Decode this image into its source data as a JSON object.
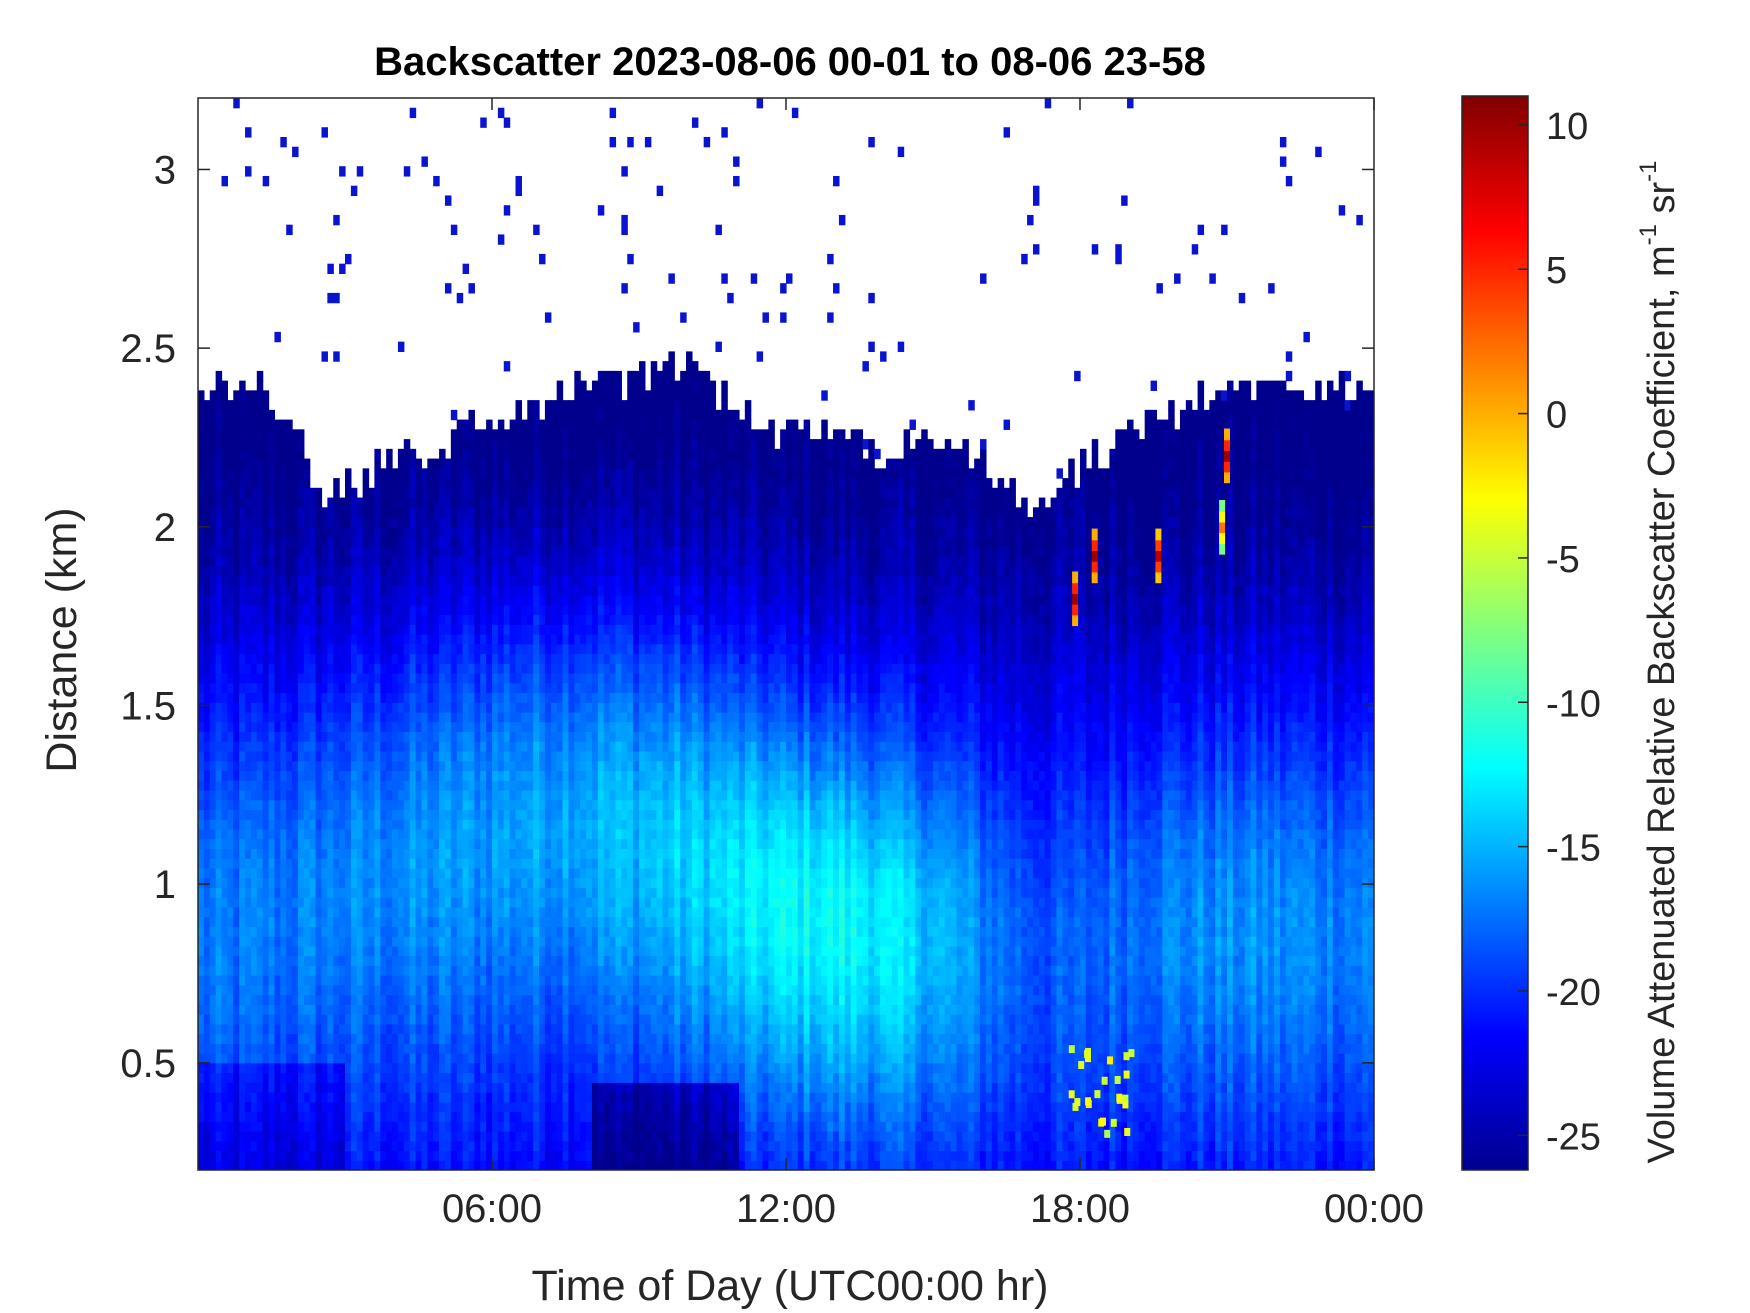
{
  "chart_data": {
    "type": "heatmap",
    "title": "Backscatter 2023-08-06 00-01 to 08-06 23-58",
    "xlabel": "Time of Day (UTC00:00 hr)",
    "ylabel": "Distance (km)",
    "colorbar_label": {
      "main": "Volume Attenuated Relative Backscatter Coefficient, m",
      "exp1": "-1",
      "mid": " sr",
      "exp2": "-1"
    },
    "x_range_hours": [
      0,
      24
    ],
    "x_ticks": [
      {
        "value": 6,
        "label": "06:00"
      },
      {
        "value": 12,
        "label": "12:00"
      },
      {
        "value": 18,
        "label": "18:00"
      },
      {
        "value": 24,
        "label": "00:00"
      }
    ],
    "ylim_km": [
      0.2,
      3.2
    ],
    "y_ticks": [
      {
        "value": 0.5,
        "label": "0.5"
      },
      {
        "value": 1,
        "label": "1"
      },
      {
        "value": 1.5,
        "label": "1.5"
      },
      {
        "value": 2,
        "label": "2"
      },
      {
        "value": 2.5,
        "label": "2.5"
      },
      {
        "value": 3,
        "label": "3"
      }
    ],
    "color_range": [
      -26.2,
      11
    ],
    "colormap": "jet",
    "colorbar_ticks": [
      {
        "value": 10,
        "label": "10"
      },
      {
        "value": 5,
        "label": "5"
      },
      {
        "value": 0,
        "label": "0"
      },
      {
        "value": -5,
        "label": "-5"
      },
      {
        "value": -10,
        "label": "-10"
      },
      {
        "value": -15,
        "label": "-15"
      },
      {
        "value": -20,
        "label": "-20"
      },
      {
        "value": -25,
        "label": "-25"
      }
    ],
    "grid": false,
    "signal_top_km": [
      [
        0.0,
        2.38
      ],
      [
        1.0,
        2.42
      ],
      [
        2.0,
        2.25
      ],
      [
        2.5,
        2.08
      ],
      [
        3.0,
        2.12
      ],
      [
        4.0,
        2.18
      ],
      [
        5.0,
        2.24
      ],
      [
        6.0,
        2.3
      ],
      [
        7.0,
        2.34
      ],
      [
        8.0,
        2.4
      ],
      [
        9.0,
        2.42
      ],
      [
        10.0,
        2.44
      ],
      [
        11.0,
        2.34
      ],
      [
        12.0,
        2.26
      ],
      [
        13.0,
        2.28
      ],
      [
        14.0,
        2.2
      ],
      [
        15.0,
        2.26
      ],
      [
        16.0,
        2.18
      ],
      [
        16.8,
        2.08
      ],
      [
        17.5,
        2.1
      ],
      [
        18.0,
        2.16
      ],
      [
        19.0,
        2.26
      ],
      [
        20.0,
        2.32
      ],
      [
        21.0,
        2.38
      ],
      [
        22.0,
        2.38
      ],
      [
        23.0,
        2.38
      ],
      [
        24.0,
        2.38
      ]
    ],
    "features": [
      {
        "name": "boundary layer maximum",
        "x_hours": [
          5.5,
          15.5
        ],
        "y_km": [
          0.6,
          1.3
        ],
        "value_approx": -12
      },
      {
        "name": "strong midday aerosol layer",
        "x_hours": [
          11.5,
          15.0
        ],
        "y_km": [
          0.6,
          1.1
        ],
        "value_approx": -9
      },
      {
        "name": "cloud returns",
        "points": [
          {
            "x_hours": 17.9,
            "y_km": 1.8,
            "value_approx": 10
          },
          {
            "x_hours": 18.3,
            "y_km": 1.92,
            "value_approx": 10
          },
          {
            "x_hours": 19.6,
            "y_km": 1.92,
            "value_approx": 9
          },
          {
            "x_hours": 21.0,
            "y_km": 2.2,
            "value_approx": 10
          },
          {
            "x_hours": 20.9,
            "y_km": 2.0,
            "value_approx": 2
          }
        ]
      },
      {
        "name": "low-level returns near 18:00",
        "x_hours": [
          17.8,
          19.1
        ],
        "y_km": [
          0.3,
          0.55
        ],
        "value_approx": -4
      }
    ]
  }
}
